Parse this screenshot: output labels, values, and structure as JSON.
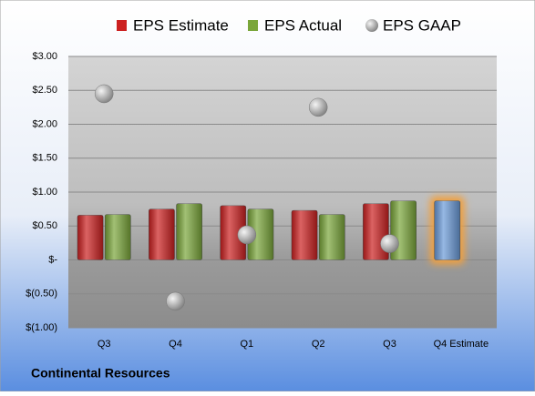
{
  "chart_data": {
    "type": "bar",
    "title": "Continental Resources",
    "categories": [
      "Q3",
      "Q4",
      "Q1",
      "Q2",
      "Q3",
      "Q4 Estimate"
    ],
    "series": [
      {
        "name": "EPS Estimate",
        "color": "#cc2020",
        "values": [
          0.66,
          0.75,
          0.8,
          0.73,
          0.83,
          0.87
        ]
      },
      {
        "name": "EPS Actual",
        "color": "#7aa63a",
        "values": [
          0.67,
          0.83,
          0.75,
          0.67,
          0.87,
          null
        ]
      },
      {
        "name": "EPS GAAP",
        "color": "#a8a8a8",
        "marker": "circle",
        "values": [
          2.45,
          -0.61,
          0.37,
          2.25,
          0.24,
          null
        ]
      }
    ],
    "highlight_color": "#6a9ad8",
    "highlight_glow_color": "#f0a040",
    "ylim": [
      -1,
      3
    ],
    "yticks": [
      {
        "value": -1,
        "label": "$(1.00)"
      },
      {
        "value": -0.5,
        "label": "$(0.50)"
      },
      {
        "value": 0,
        "label": "$-"
      },
      {
        "value": 0.5,
        "label": "$0.50"
      },
      {
        "value": 1,
        "label": "$1.00"
      },
      {
        "value": 1.5,
        "label": "$1.50"
      },
      {
        "value": 2,
        "label": "$2.00"
      },
      {
        "value": 2.5,
        "label": "$2.50"
      },
      {
        "value": 3,
        "label": "$3.00"
      }
    ],
    "grid": true,
    "legend": "top"
  }
}
